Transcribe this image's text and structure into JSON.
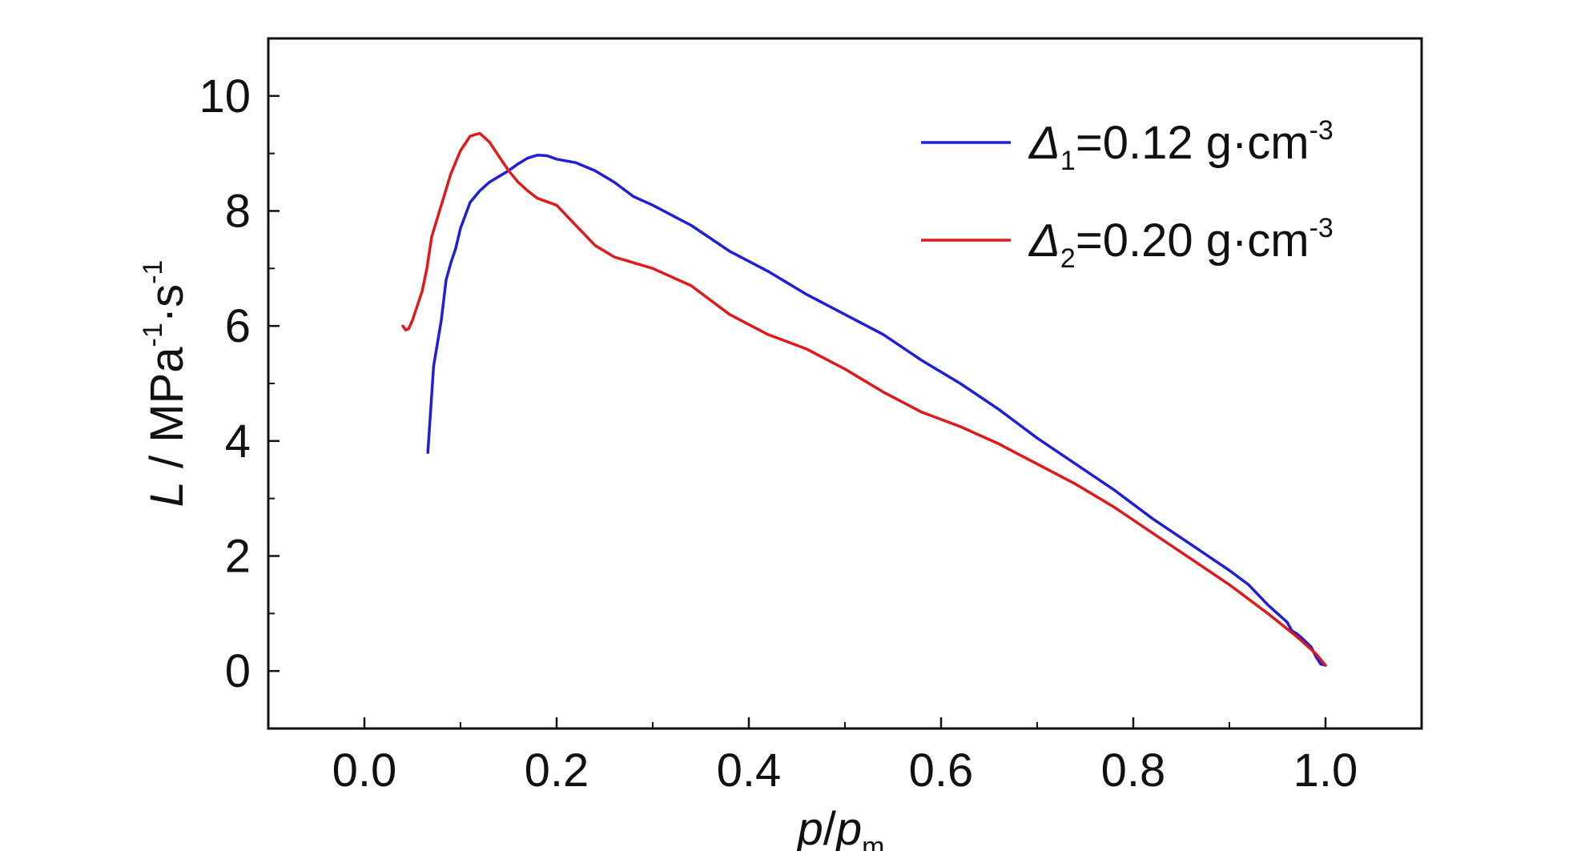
{
  "chart_data": {
    "type": "line",
    "xlabel": {
      "italic_main": "p",
      "slash": "/",
      "italic_sub_base": "p",
      "sub": "m"
    },
    "ylabel": {
      "italic_var": "L",
      "rest": " / MPa",
      "exp1": "-1",
      "mid": "·s",
      "exp2": "-1"
    },
    "xlim": [
      -0.1,
      1.1
    ],
    "ylim": [
      -1,
      11
    ],
    "xticks": [
      0.0,
      0.2,
      0.4,
      0.6,
      0.8,
      1.0
    ],
    "xtick_labels": [
      "0.0",
      "0.2",
      "0.4",
      "0.6",
      "0.8",
      "1.0"
    ],
    "yticks": [
      0,
      2,
      4,
      6,
      8,
      10
    ],
    "ytick_labels": [
      "0",
      "2",
      "4",
      "6",
      "8",
      "10"
    ],
    "grid": false,
    "legend_position": "top-right",
    "series": [
      {
        "legend": {
          "delta": "Δ",
          "sub": "1",
          "text": "=0.12 g·cm",
          "sup": "-3"
        },
        "color": "#1f1fd6",
        "x": [
          0.066,
          0.068,
          0.07,
          0.072,
          0.076,
          0.08,
          0.085,
          0.09,
          0.095,
          0.1,
          0.11,
          0.12,
          0.13,
          0.14,
          0.15,
          0.16,
          0.17,
          0.18,
          0.19,
          0.2,
          0.22,
          0.24,
          0.26,
          0.28,
          0.3,
          0.34,
          0.38,
          0.42,
          0.46,
          0.5,
          0.54,
          0.58,
          0.62,
          0.66,
          0.7,
          0.74,
          0.78,
          0.82,
          0.86,
          0.9,
          0.92,
          0.94,
          0.96,
          0.965,
          0.97,
          0.975,
          0.98,
          0.985,
          0.99,
          0.995,
          1.0
        ],
        "y": [
          3.8,
          4.3,
          4.8,
          5.3,
          5.7,
          6.1,
          6.8,
          7.1,
          7.35,
          7.7,
          8.15,
          8.35,
          8.5,
          8.6,
          8.7,
          8.82,
          8.92,
          8.97,
          8.96,
          8.9,
          8.84,
          8.7,
          8.5,
          8.25,
          8.1,
          7.75,
          7.3,
          6.95,
          6.55,
          6.2,
          5.85,
          5.4,
          5.0,
          4.55,
          4.05,
          3.6,
          3.15,
          2.65,
          2.2,
          1.75,
          1.5,
          1.15,
          0.85,
          0.7,
          0.65,
          0.58,
          0.5,
          0.42,
          0.25,
          0.12,
          0.1
        ]
      },
      {
        "legend": {
          "delta": "Δ",
          "sub": "2",
          "text": "=0.20 g·cm",
          "sup": "-3"
        },
        "color": "#e01a1a",
        "x": [
          0.04,
          0.043,
          0.046,
          0.05,
          0.055,
          0.06,
          0.065,
          0.07,
          0.08,
          0.09,
          0.1,
          0.11,
          0.12,
          0.13,
          0.14,
          0.15,
          0.16,
          0.17,
          0.18,
          0.2,
          0.22,
          0.24,
          0.26,
          0.28,
          0.3,
          0.34,
          0.38,
          0.42,
          0.46,
          0.5,
          0.54,
          0.58,
          0.62,
          0.66,
          0.7,
          0.74,
          0.78,
          0.82,
          0.86,
          0.9,
          0.94,
          0.97,
          0.99,
          1.0
        ],
        "y": [
          6.0,
          5.93,
          5.95,
          6.1,
          6.35,
          6.6,
          7.0,
          7.55,
          8.1,
          8.65,
          9.05,
          9.3,
          9.35,
          9.2,
          8.95,
          8.7,
          8.5,
          8.35,
          8.22,
          8.1,
          7.75,
          7.4,
          7.2,
          7.1,
          7.0,
          6.7,
          6.2,
          5.85,
          5.6,
          5.25,
          4.85,
          4.5,
          4.25,
          3.95,
          3.6,
          3.25,
          2.85,
          2.4,
          1.95,
          1.5,
          1.0,
          0.6,
          0.3,
          0.1
        ]
      }
    ]
  }
}
